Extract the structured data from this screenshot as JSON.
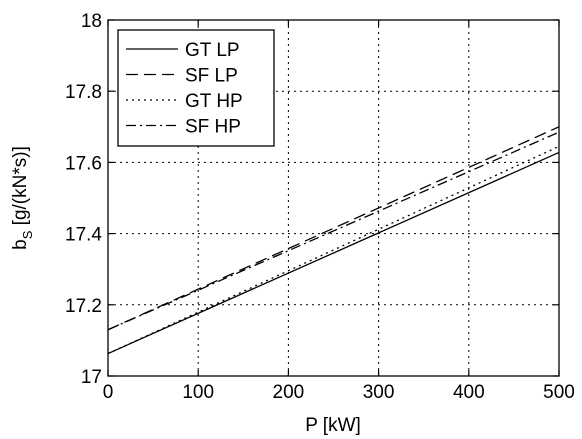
{
  "chart_data": {
    "type": "line",
    "xlabel": "P [kW]",
    "ylabel_main": "b",
    "ylabel_sub": "S",
    "ylabel_unit": " [g/(kN*s)]",
    "xlim": [
      0,
      500
    ],
    "ylim": [
      17,
      18
    ],
    "x_ticks": [
      0,
      100,
      200,
      300,
      400,
      500
    ],
    "y_ticks": [
      17,
      17.2,
      17.4,
      17.6,
      17.8,
      18
    ],
    "x_tick_labels": [
      "0",
      "100",
      "200",
      "300",
      "400",
      "500"
    ],
    "y_tick_labels": [
      "17",
      "17.2",
      "17.4",
      "17.6",
      "17.8",
      "18"
    ],
    "grid": true,
    "legend_position": "top-left",
    "series": [
      {
        "name": "GT LP",
        "style": "solid",
        "x": [
          0,
          500
        ],
        "y": [
          17.063,
          17.628
        ]
      },
      {
        "name": "SF LP",
        "style": "dashed",
        "x": [
          0,
          500
        ],
        "y": [
          17.13,
          17.7
        ]
      },
      {
        "name": "GT HP",
        "style": "dotted",
        "x": [
          0,
          500
        ],
        "y": [
          17.063,
          17.645
        ]
      },
      {
        "name": "SF HP",
        "style": "dashdot",
        "x": [
          0,
          500
        ],
        "y": [
          17.13,
          17.685
        ]
      }
    ]
  }
}
